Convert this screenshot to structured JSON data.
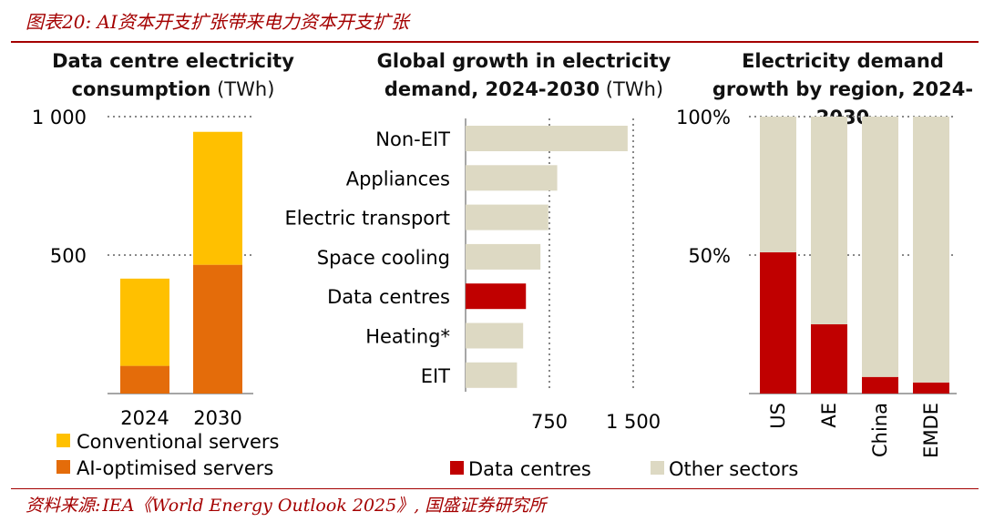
{
  "figure_title": "图表20: AI资本开支扩张带来电力资本开支扩张",
  "source": {
    "label": "资料来源:",
    "text": "IEA《World Energy Outlook 2025》, 国盛证券研究所"
  },
  "colors": {
    "conventional": "#ffc000",
    "ai_optimised": "#e46c0a",
    "data_centres": "#c00000",
    "other": "#ddd9c3",
    "axis": "#888888",
    "grid": "#888888",
    "brand_red": "#a40000"
  },
  "chart_data": [
    {
      "type": "bar",
      "stacked": true,
      "title": "Data centre electricity consumption",
      "unit": "(TWh)",
      "categories": [
        "2024",
        "2030"
      ],
      "series": [
        {
          "name": "AI-optimised servers",
          "values": [
            100,
            465
          ]
        },
        {
          "name": "Conventional servers",
          "values": [
            315,
            480
          ]
        }
      ],
      "ylim": [
        0,
        1000
      ],
      "yticks": [
        500,
        1000
      ],
      "ytick_labels": [
        "500",
        "1 000"
      ],
      "legend": [
        "Conventional servers",
        "AI-optimised servers"
      ],
      "legend_position": "bottom"
    },
    {
      "type": "bar",
      "orientation": "horizontal",
      "title": "Global growth in electricity demand, 2024-2030",
      "unit": "(TWh)",
      "categories": [
        "Non-EIT",
        "Appliances",
        "Electric transport",
        "Space cooling",
        "Data centres",
        "Heating*",
        "EIT"
      ],
      "values": [
        1450,
        820,
        740,
        670,
        540,
        515,
        460
      ],
      "highlight": "Data centres",
      "xlim": [
        0,
        1500
      ],
      "xticks": [
        750,
        1500
      ],
      "xtick_labels": [
        "750",
        "1 500"
      ]
    },
    {
      "type": "bar",
      "stacked": true,
      "percent": true,
      "title": "Electricity demand growth by region, 2024-2030",
      "categories": [
        "US",
        "AE",
        "China",
        "EMDE"
      ],
      "series": [
        {
          "name": "Data centres",
          "values": [
            51,
            25,
            6,
            4
          ]
        },
        {
          "name": "Other sectors",
          "values": [
            49,
            75,
            94,
            96
          ]
        }
      ],
      "ylim": [
        0,
        100
      ],
      "yticks": [
        50,
        100
      ],
      "ytick_labels": [
        "50%",
        "100%"
      ],
      "legend": [
        "Data centres",
        "Other sectors"
      ],
      "legend_position": "bottom"
    }
  ]
}
